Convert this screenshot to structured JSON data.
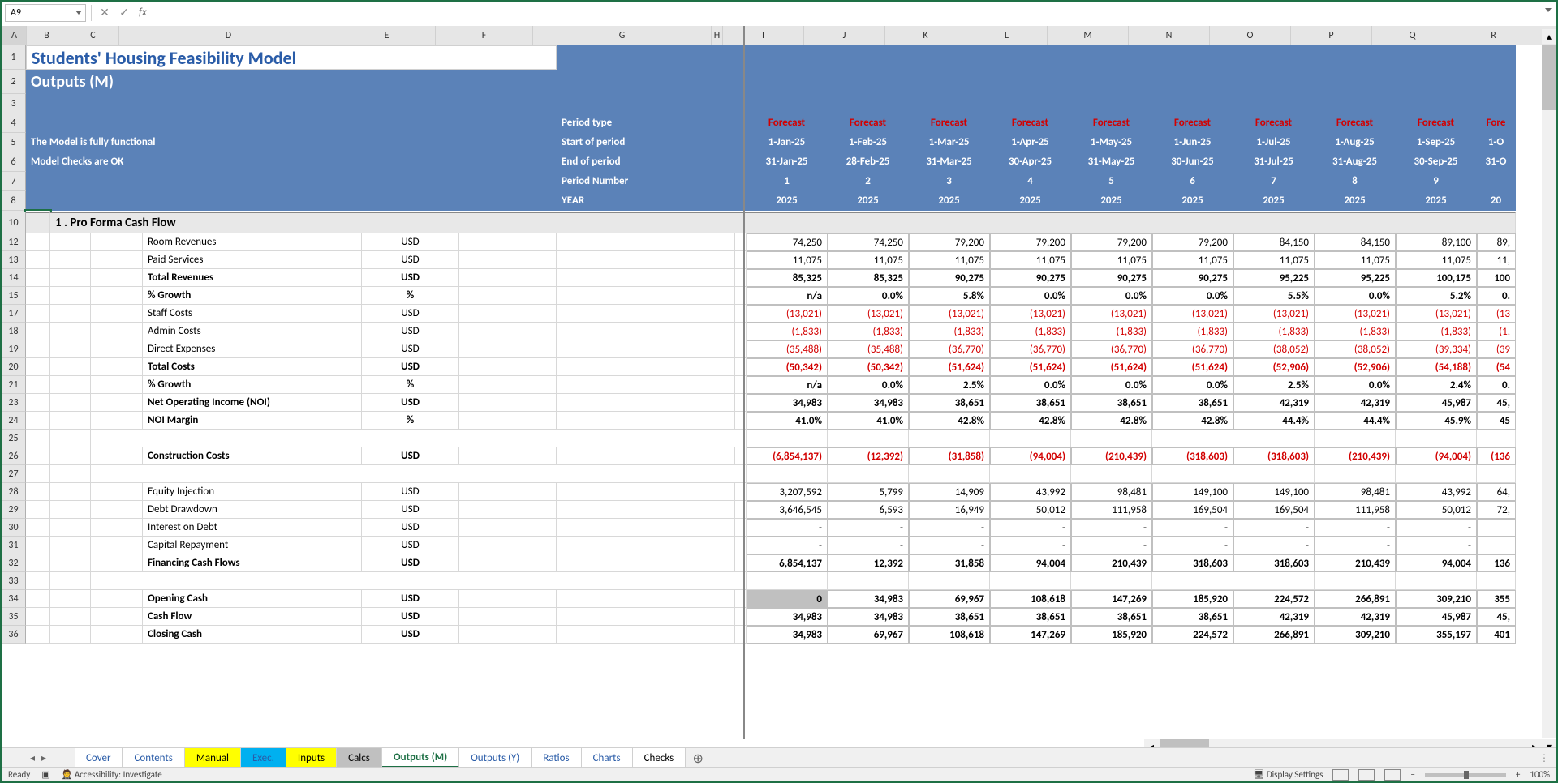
{
  "namebox": "A9",
  "fx": "",
  "title1": "Students' Housing Feasibility Model",
  "title2": "Outputs (M)",
  "status1": "The Model is fully functional",
  "status2": "Model Checks are OK",
  "period_labels": {
    "type": "Period type",
    "start": "Start of period",
    "end": "End of period",
    "num": "Period Number",
    "year": "YEAR"
  },
  "cols": [
    "A",
    "B",
    "C",
    "D",
    "E",
    "F",
    "G",
    "H",
    "I",
    "J",
    "K",
    "L",
    "M",
    "N",
    "O",
    "P",
    "Q",
    "R"
  ],
  "col_widths": {
    "A": 30,
    "B": 50,
    "C": 64,
    "D": 270,
    "E": 120,
    "F": 120,
    "G": 220,
    "H": 14,
    "I": 100,
    "J": 100,
    "K": 100,
    "L": 100,
    "M": 100,
    "N": 100,
    "O": 100,
    "P": 100,
    "Q": 100,
    "R": 100,
    "X": 48
  },
  "row_nums": [
    "1",
    "2",
    "3",
    "4",
    "5",
    "6",
    "7",
    "8",
    "10",
    "12",
    "13",
    "14",
    "15",
    "17",
    "18",
    "19",
    "20",
    "21",
    "23",
    "24",
    "25",
    "26",
    "27",
    "28",
    "29",
    "30",
    "31",
    "32",
    "33",
    "34",
    "35",
    "36"
  ],
  "section": "1 . Pro Forma Cash Flow",
  "periods": {
    "forecast": [
      "Forecast",
      "Forecast",
      "Forecast",
      "Forecast",
      "Forecast",
      "Forecast",
      "Forecast",
      "Forecast",
      "Forecast",
      "Fore"
    ],
    "start": [
      "1-Jan-25",
      "1-Feb-25",
      "1-Mar-25",
      "1-Apr-25",
      "1-May-25",
      "1-Jun-25",
      "1-Jul-25",
      "1-Aug-25",
      "1-Sep-25",
      "1-O"
    ],
    "end": [
      "31-Jan-25",
      "28-Feb-25",
      "31-Mar-25",
      "30-Apr-25",
      "31-May-25",
      "30-Jun-25",
      "31-Jul-25",
      "31-Aug-25",
      "30-Sep-25",
      "31-O"
    ],
    "num": [
      "1",
      "2",
      "3",
      "4",
      "5",
      "6",
      "7",
      "8",
      "9",
      ""
    ],
    "year": [
      "2025",
      "2025",
      "2025",
      "2025",
      "2025",
      "2025",
      "2025",
      "2025",
      "2025",
      "20"
    ]
  },
  "lines": [
    {
      "label": "Room Revenues",
      "unit": "USD",
      "bold": false,
      "vals": [
        "74,250",
        "74,250",
        "79,200",
        "79,200",
        "79,200",
        "79,200",
        "84,150",
        "84,150",
        "89,100",
        "89,"
      ]
    },
    {
      "label": "Paid Services",
      "unit": "USD",
      "bold": false,
      "vals": [
        "11,075",
        "11,075",
        "11,075",
        "11,075",
        "11,075",
        "11,075",
        "11,075",
        "11,075",
        "11,075",
        "11,"
      ]
    },
    {
      "label": "Total Revenues",
      "unit": "USD",
      "bold": true,
      "vals": [
        "85,325",
        "85,325",
        "90,275",
        "90,275",
        "90,275",
        "90,275",
        "95,225",
        "95,225",
        "100,175",
        "100"
      ]
    },
    {
      "label": "% Growth",
      "unit": "%",
      "bold": true,
      "vals": [
        "n/a",
        "0.0%",
        "5.8%",
        "0.0%",
        "0.0%",
        "0.0%",
        "5.5%",
        "0.0%",
        "5.2%",
        "0."
      ]
    },
    {
      "label": "Staff Costs",
      "unit": "USD",
      "bold": false,
      "neg": true,
      "vals": [
        "(13,021)",
        "(13,021)",
        "(13,021)",
        "(13,021)",
        "(13,021)",
        "(13,021)",
        "(13,021)",
        "(13,021)",
        "(13,021)",
        "(13"
      ]
    },
    {
      "label": "Admin Costs",
      "unit": "USD",
      "bold": false,
      "neg": true,
      "vals": [
        "(1,833)",
        "(1,833)",
        "(1,833)",
        "(1,833)",
        "(1,833)",
        "(1,833)",
        "(1,833)",
        "(1,833)",
        "(1,833)",
        "(1,"
      ]
    },
    {
      "label": "Direct Expenses",
      "unit": "USD",
      "bold": false,
      "neg": true,
      "vals": [
        "(35,488)",
        "(35,488)",
        "(36,770)",
        "(36,770)",
        "(36,770)",
        "(36,770)",
        "(38,052)",
        "(38,052)",
        "(39,334)",
        "(39"
      ]
    },
    {
      "label": "Total Costs",
      "unit": "USD",
      "bold": true,
      "neg": true,
      "vals": [
        "(50,342)",
        "(50,342)",
        "(51,624)",
        "(51,624)",
        "(51,624)",
        "(51,624)",
        "(52,906)",
        "(52,906)",
        "(54,188)",
        "(54"
      ]
    },
    {
      "label": "% Growth",
      "unit": "%",
      "bold": true,
      "vals": [
        "n/a",
        "0.0%",
        "2.5%",
        "0.0%",
        "0.0%",
        "0.0%",
        "2.5%",
        "0.0%",
        "2.4%",
        "0."
      ]
    },
    {
      "label": "Net Operating Income (NOI)",
      "unit": "USD",
      "bold": true,
      "vals": [
        "34,983",
        "34,983",
        "38,651",
        "38,651",
        "38,651",
        "38,651",
        "42,319",
        "42,319",
        "45,987",
        "45,"
      ]
    },
    {
      "label": "NOI Margin",
      "unit": "%",
      "bold": true,
      "vals": [
        "41.0%",
        "41.0%",
        "42.8%",
        "42.8%",
        "42.8%",
        "42.8%",
        "44.4%",
        "44.4%",
        "45.9%",
        "45"
      ]
    },
    {
      "blank": true
    },
    {
      "label": "Construction Costs",
      "unit": "USD",
      "bold": true,
      "neg": true,
      "vals": [
        "(6,854,137)",
        "(12,392)",
        "(31,858)",
        "(94,004)",
        "(210,439)",
        "(318,603)",
        "(318,603)",
        "(210,439)",
        "(94,004)",
        "(136"
      ]
    },
    {
      "blank": true
    },
    {
      "label": "Equity Injection",
      "unit": "USD",
      "bold": false,
      "vals": [
        "3,207,592",
        "5,799",
        "14,909",
        "43,992",
        "98,481",
        "149,100",
        "149,100",
        "98,481",
        "43,992",
        "64,"
      ]
    },
    {
      "label": "Debt Drawdown",
      "unit": "USD",
      "bold": false,
      "vals": [
        "3,646,545",
        "6,593",
        "16,949",
        "50,012",
        "111,958",
        "169,504",
        "169,504",
        "111,958",
        "50,012",
        "72,"
      ]
    },
    {
      "label": "Interest on Debt",
      "unit": "USD",
      "bold": false,
      "vals": [
        "-",
        "-",
        "-",
        "-",
        "-",
        "-",
        "-",
        "-",
        "-",
        ""
      ]
    },
    {
      "label": "Capital Repayment",
      "unit": "USD",
      "bold": false,
      "vals": [
        "-",
        "-",
        "-",
        "-",
        "-",
        "-",
        "-",
        "-",
        "-",
        ""
      ]
    },
    {
      "label": "Financing Cash Flows",
      "unit": "USD",
      "bold": true,
      "vals": [
        "6,854,137",
        "12,392",
        "31,858",
        "94,004",
        "210,439",
        "318,603",
        "318,603",
        "210,439",
        "94,004",
        "136"
      ]
    },
    {
      "blank": true
    },
    {
      "label": "Opening Cash",
      "unit": "USD",
      "bold": true,
      "hl0": true,
      "vals": [
        "0",
        "34,983",
        "69,967",
        "108,618",
        "147,269",
        "185,920",
        "224,572",
        "266,891",
        "309,210",
        "355"
      ]
    },
    {
      "label": "Cash Flow",
      "unit": "USD",
      "bold": true,
      "vals": [
        "34,983",
        "34,983",
        "38,651",
        "38,651",
        "38,651",
        "38,651",
        "42,319",
        "42,319",
        "45,987",
        "45,"
      ]
    },
    {
      "label": "Closing Cash",
      "unit": "USD",
      "bold": true,
      "vals": [
        "34,983",
        "69,967",
        "108,618",
        "147,269",
        "185,920",
        "224,572",
        "266,891",
        "309,210",
        "355,197",
        "401"
      ]
    }
  ],
  "tabs": [
    {
      "name": "Cover",
      "cls": "tab-cover"
    },
    {
      "name": "Contents",
      "cls": "tab-contents"
    },
    {
      "name": "Manual",
      "cls": "tab-manual"
    },
    {
      "name": "Exec.",
      "cls": "tab-exec"
    },
    {
      "name": "Inputs",
      "cls": "tab-inputs"
    },
    {
      "name": "Calcs",
      "cls": "tab-calcs"
    },
    {
      "name": "Outputs (M)",
      "cls": "tab-outm"
    },
    {
      "name": "Outputs (Y)",
      "cls": "tab-outy"
    },
    {
      "name": "Ratios",
      "cls": "tab-ratios"
    },
    {
      "name": "Charts",
      "cls": "tab-charts"
    },
    {
      "name": "Checks",
      "cls": "tab-checks"
    }
  ],
  "status": {
    "ready": "Ready",
    "acc": "Accessibility: Investigate",
    "disp": "Display Settings",
    "zoom": "100%"
  }
}
